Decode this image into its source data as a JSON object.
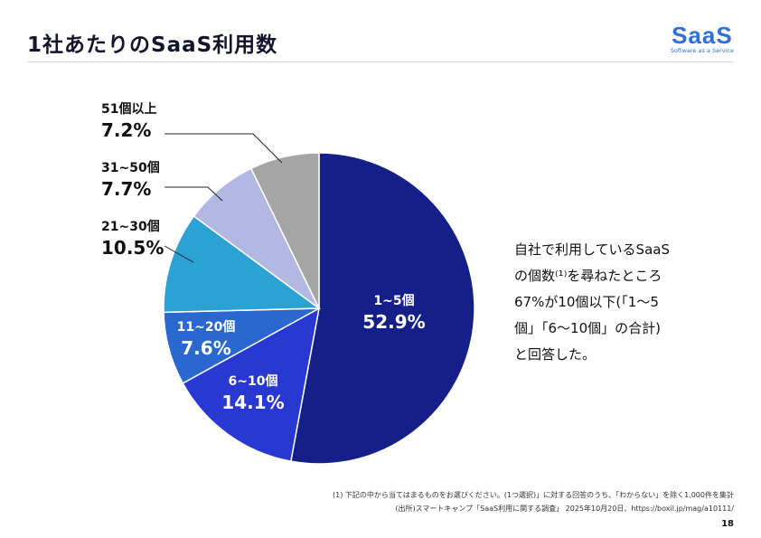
{
  "header": {
    "title": "1社あたりのSaaS利用数",
    "logo_main": "SaaS",
    "logo_sub": "Software as a Service"
  },
  "annotation": [
    "自社で利用しているSaaS",
    "の個数⁽¹⁾を尋ねたところ",
    "67%が10個以下(「1〜5",
    "個」「6〜10個」の合計)",
    "と回答した。"
  ],
  "footnotes": [
    "(1) 下記の中から当てはまるものをお選びください。(1つ選択)」に対する回答のうち、「わからない」を除く1,000件を集計",
    "(出所)スマートキャンプ「SaaS利用に関する調査」 2025年10月20日、https://boxil.jp/mag/a10111/"
  ],
  "page_number": "18",
  "chart_data": {
    "type": "pie",
    "start": "top",
    "direction": "clockwise",
    "categories": [
      "1~5個",
      "6~10個",
      "11~20個",
      "21~30個",
      "31~50個",
      "51個以上"
    ],
    "values": [
      52.9,
      14.1,
      7.6,
      10.5,
      7.7,
      7.2
    ],
    "labels": [
      "52.9%",
      "14.1%",
      "7.6%",
      "10.5%",
      "7.7%",
      "7.2%"
    ],
    "colors": [
      "#141f8a",
      "#2a38d2",
      "#2a67cf",
      "#2ba2d3",
      "#b3b8e2",
      "#a5a5a5"
    ],
    "legend": "none"
  }
}
